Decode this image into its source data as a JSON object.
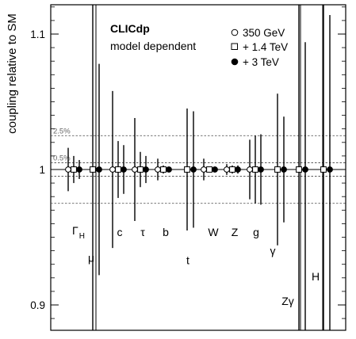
{
  "chart_data": {
    "type": "scatter",
    "ylabel": "coupling relative to SM",
    "ylim": [
      0.88,
      1.16
    ],
    "yticks": [
      {
        "value": 0.9,
        "label": "0.9"
      },
      {
        "value": 1.0,
        "label": "1"
      },
      {
        "value": 1.1,
        "label": "1.1"
      }
    ],
    "annotations": {
      "title": "CLICdp",
      "subtitle": "model dependent"
    },
    "reference_lines": [
      {
        "value": 1.025,
        "label": "2.5%",
        "style": "dashed"
      },
      {
        "value": 0.975,
        "label": "",
        "style": "dashed"
      },
      {
        "value": 1.005,
        "label": "0.5%",
        "style": "dashed"
      },
      {
        "value": 0.995,
        "label": "",
        "style": "dashed"
      }
    ],
    "legend": {
      "placement": "top-right",
      "entries": [
        {
          "name": "350 GeV",
          "marker": "open-circle"
        },
        {
          "name": "+ 1.4 TeV",
          "marker": "open-square"
        },
        {
          "name": "+ 3 TeV",
          "marker": "filled-circle"
        }
      ]
    },
    "couplings": [
      {
        "label": "ΓH",
        "sub": "H",
        "main": "Γ",
        "label_y": 0.952,
        "points": [
          {
            "stage": "350 GeV",
            "value": 1.0,
            "low": 0.984,
            "high": 1.016
          },
          {
            "stage": "+ 1.4 TeV",
            "value": 1.0,
            "low": 0.99,
            "high": 1.01
          },
          {
            "stage": "+ 3 TeV",
            "value": 1.0,
            "low": 0.993,
            "high": 1.007
          }
        ]
      },
      {
        "label": "μ",
        "label_y": 0.932,
        "points": [
          {
            "stage": "+ 1.4 TeV",
            "value": 1.0,
            "low": 0.86,
            "high": 1.14
          },
          {
            "stage": "+ 3 TeV",
            "value": 1.0,
            "low": 0.922,
            "high": 1.078
          }
        ]
      },
      {
        "label": "c",
        "label_y": 0.951,
        "points": [
          {
            "stage": "350 GeV",
            "value": 1.0,
            "low": 0.942,
            "high": 1.058
          },
          {
            "stage": "+ 1.4 TeV",
            "value": 1.0,
            "low": 0.979,
            "high": 1.021
          },
          {
            "stage": "+ 3 TeV",
            "value": 1.0,
            "low": 0.982,
            "high": 1.018
          }
        ]
      },
      {
        "label": "τ",
        "label_y": 0.951,
        "points": [
          {
            "stage": "350 GeV",
            "value": 1.0,
            "low": 0.962,
            "high": 1.038
          },
          {
            "stage": "+ 1.4 TeV",
            "value": 1.0,
            "low": 0.987,
            "high": 1.013
          },
          {
            "stage": "+ 3 TeV",
            "value": 1.0,
            "low": 0.99,
            "high": 1.01
          }
        ]
      },
      {
        "label": "b",
        "label_y": 0.951,
        "points": [
          {
            "stage": "350 GeV",
            "value": 1.0,
            "low": 0.992,
            "high": 1.008
          },
          {
            "stage": "+ 1.4 TeV",
            "value": 1.0,
            "low": 0.997,
            "high": 1.003
          },
          {
            "stage": "+ 3 TeV",
            "value": 1.0,
            "low": 0.998,
            "high": 1.002
          }
        ]
      },
      {
        "label": "t",
        "label_y": 0.93,
        "points": [
          {
            "stage": "+ 1.4 TeV",
            "value": 1.0,
            "low": 0.955,
            "high": 1.045
          },
          {
            "stage": "+ 3 TeV",
            "value": 1.0,
            "low": 0.957,
            "high": 1.043
          }
        ]
      },
      {
        "label": "W",
        "label_y": 0.951,
        "points": [
          {
            "stage": "350 GeV",
            "value": 1.0,
            "low": 0.992,
            "high": 1.008
          },
          {
            "stage": "+ 1.4 TeV",
            "value": 1.0,
            "low": 0.998,
            "high": 1.002
          },
          {
            "stage": "+ 3 TeV",
            "value": 1.0,
            "low": 0.999,
            "high": 1.001
          }
        ]
      },
      {
        "label": "Z",
        "label_y": 0.951,
        "points": [
          {
            "stage": "350 GeV",
            "value": 1.0,
            "low": 0.996,
            "high": 1.004
          },
          {
            "stage": "+ 1.4 TeV",
            "value": 1.0,
            "low": 0.997,
            "high": 1.003
          },
          {
            "stage": "+ 3 TeV",
            "value": 1.0,
            "low": 0.997,
            "high": 1.003
          }
        ]
      },
      {
        "label": "g",
        "label_y": 0.951,
        "points": [
          {
            "stage": "350 GeV",
            "value": 1.0,
            "low": 0.978,
            "high": 1.022
          },
          {
            "stage": "+ 1.4 TeV",
            "value": 1.0,
            "low": 0.975,
            "high": 1.025
          },
          {
            "stage": "+ 3 TeV",
            "value": 1.0,
            "low": 0.974,
            "high": 1.026
          }
        ]
      },
      {
        "label": "γ",
        "label_y": 0.937,
        "points": [
          {
            "stage": "+ 1.4 TeV",
            "value": 1.0,
            "low": 0.944,
            "high": 1.056
          },
          {
            "stage": "+ 3 TeV",
            "value": 1.0,
            "low": 0.961,
            "high": 1.039
          }
        ]
      },
      {
        "label": "Zγ",
        "label_y": 0.9,
        "points": [
          {
            "stage": "+ 1.4 TeV",
            "value": 1.0,
            "low": 0.875,
            "high": 1.16
          },
          {
            "stage": "+ 3 TeV",
            "value": 1.0,
            "low": 0.88,
            "high": 1.094
          }
        ]
      },
      {
        "label": "H",
        "label_y": 0.918,
        "points": [
          {
            "stage": "+ 1.4 TeV",
            "value": 1.0,
            "low": 0.875,
            "high": 1.16
          },
          {
            "stage": "+ 3 TeV",
            "value": 1.0,
            "low": 0.875,
            "high": 1.114
          }
        ]
      }
    ]
  }
}
